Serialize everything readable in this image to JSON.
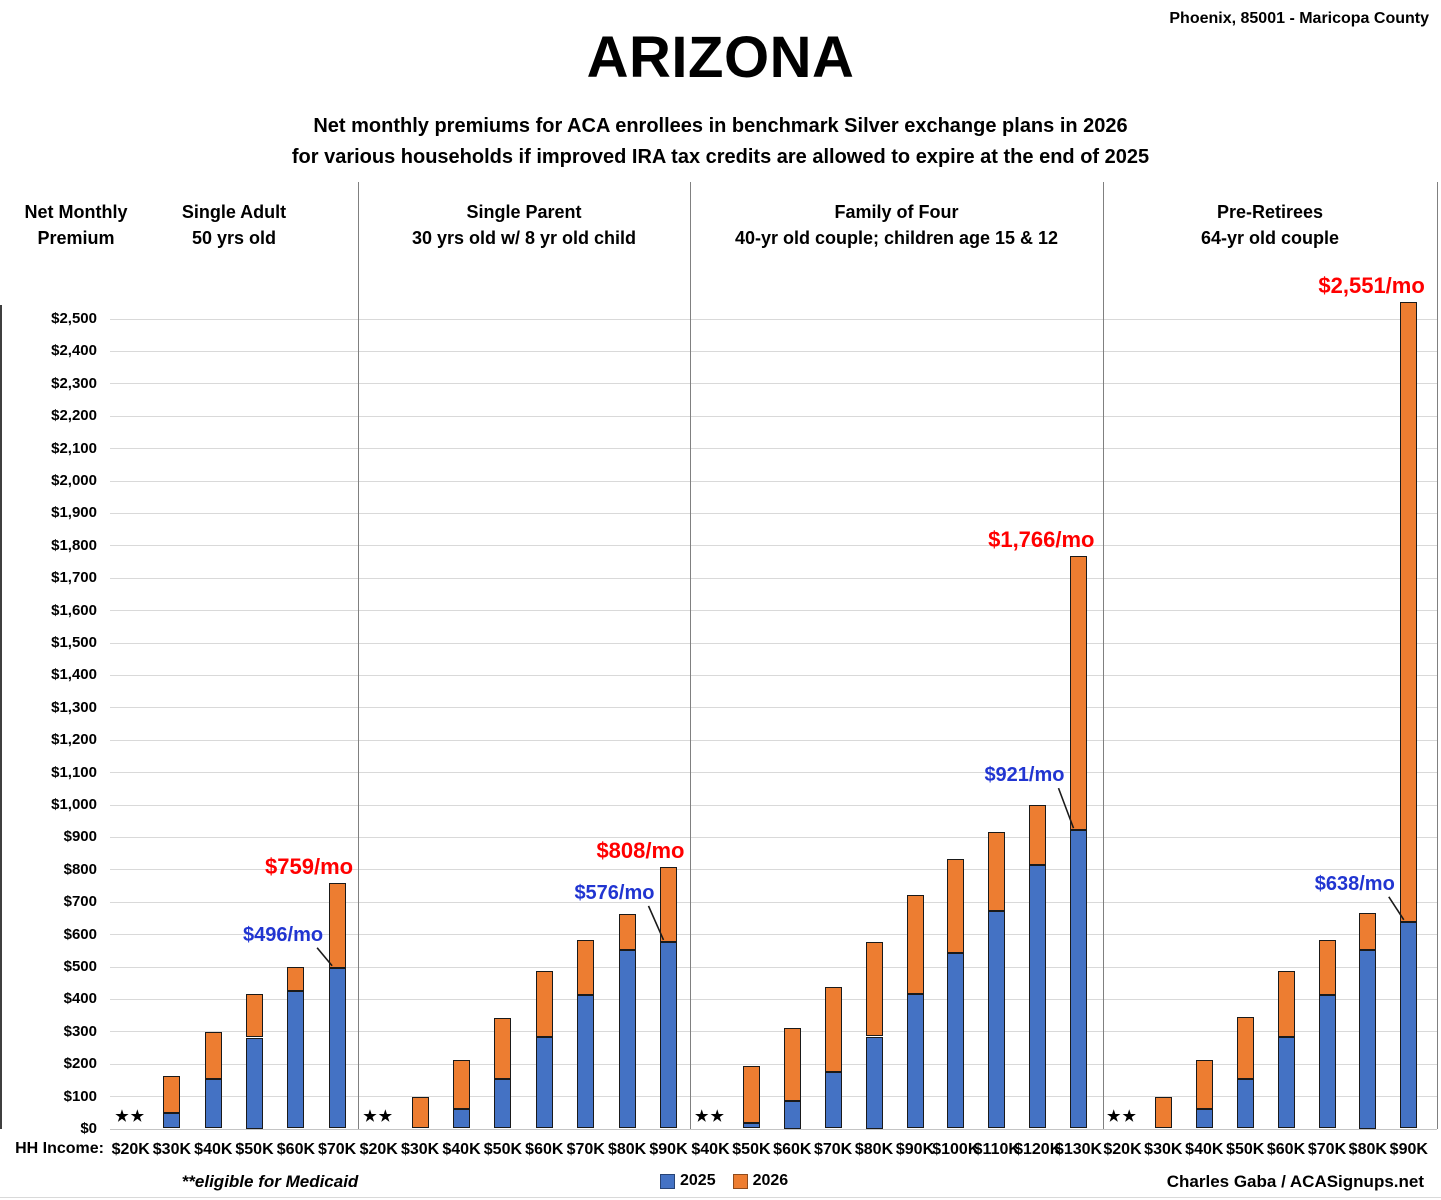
{
  "header": {
    "location": "Phoenix, 85001 - Maricopa County",
    "title": "ARIZONA",
    "subtitle_line1": "Net monthly premiums for ACA enrollees in benchmark Silver exchange plans in 2026",
    "subtitle_line2": "for various households if improved IRA tax credits are allowed to expire at the end of 2025"
  },
  "axis": {
    "y_title_line1": "Net Monthly",
    "y_title_line2": "Premium",
    "x_title": "HH Income:",
    "y_min": 0,
    "y_max": 2500,
    "y_step": 100,
    "tick_prefix": "$",
    "medicaid_marker": "★★"
  },
  "legend": {
    "items": [
      {
        "label": "2025",
        "color": "#4472C4"
      },
      {
        "label": "2026",
        "color": "#ED7D31"
      }
    ]
  },
  "footer": {
    "footnote": "**eligible for Medicaid",
    "credit": "Charles Gaba / ACASignups.net"
  },
  "colors": {
    "blue_2025": "#4472C4",
    "orange_2026": "#ED7D31",
    "bar_border": "#1a1a1a",
    "annotation_red": "#FF0000",
    "annotation_blue": "#2135D1",
    "gridline": "#d9d9d9",
    "axis_line": "#c4c4c4",
    "divider": "#808080"
  },
  "chart_data": {
    "type": "bar",
    "stacked": true,
    "title": "ARIZONA",
    "ylabel": "Net Monthly Premium",
    "ylim": [
      0,
      2600
    ],
    "ytick_step": 100,
    "grid": true,
    "legend_position": "bottom",
    "series_names": [
      "2025",
      "2026"
    ],
    "note": "Blue bar = 2025 net monthly premium; orange segment extends to the 2026 net monthly premium. Starred incomes are eligible for Medicaid (no premium shown).",
    "groups": [
      {
        "title": "Single Adult",
        "subtitle": "50 yrs old",
        "bars": [
          {
            "income": "$20K",
            "medicaid": true
          },
          {
            "income": "$30K",
            "premium_2025": 48,
            "premium_2026": 162
          },
          {
            "income": "$40K",
            "premium_2025": 152,
            "premium_2026": 297
          },
          {
            "income": "$50K",
            "premium_2025": 281,
            "premium_2026": 416
          },
          {
            "income": "$60K",
            "premium_2025": 424,
            "premium_2026": 498
          },
          {
            "income": "$70K",
            "premium_2025": 496,
            "premium_2026": 759
          }
        ],
        "annotations": {
          "label_2026": "$759/mo",
          "label_2025": "$496/mo"
        }
      },
      {
        "title": "Single Parent",
        "subtitle": "30 yrs old w/ 8 yr old child",
        "bars": [
          {
            "income": "$20K",
            "medicaid": true
          },
          {
            "income": "$30K",
            "premium_2025": 0,
            "premium_2026": 97
          },
          {
            "income": "$40K",
            "premium_2025": 60,
            "premium_2026": 212
          },
          {
            "income": "$50K",
            "premium_2025": 154,
            "premium_2026": 342
          },
          {
            "income": "$60K",
            "premium_2025": 283,
            "premium_2026": 487
          },
          {
            "income": "$70K",
            "premium_2025": 411,
            "premium_2026": 581
          },
          {
            "income": "$80K",
            "premium_2025": 552,
            "premium_2026": 663
          },
          {
            "income": "$90K",
            "premium_2025": 576,
            "premium_2026": 808
          }
        ],
        "annotations": {
          "label_2026": "$808/mo",
          "label_2025": "$576/mo"
        }
      },
      {
        "title": "Family of Four",
        "subtitle": "40-yr old couple; children age 15 & 12",
        "bars": [
          {
            "income": "$40K",
            "medicaid": true
          },
          {
            "income": "$50K",
            "premium_2025": 16,
            "premium_2026": 192
          },
          {
            "income": "$60K",
            "premium_2025": 85,
            "premium_2026": 310
          },
          {
            "income": "$70K",
            "premium_2025": 173,
            "premium_2026": 437
          },
          {
            "income": "$80K",
            "premium_2025": 284,
            "premium_2026": 575
          },
          {
            "income": "$90K",
            "premium_2025": 414,
            "premium_2026": 720
          },
          {
            "income": "$100K",
            "premium_2025": 543,
            "premium_2026": 831
          },
          {
            "income": "$110K",
            "premium_2025": 671,
            "premium_2026": 916
          },
          {
            "income": "$120K",
            "premium_2025": 813,
            "premium_2026": 1000
          },
          {
            "income": "$130K",
            "premium_2025": 921,
            "premium_2026": 1766
          }
        ],
        "annotations": {
          "label_2026": "$1,766/mo",
          "label_2025": "$921/mo"
        }
      },
      {
        "title": "Pre-Retirees",
        "subtitle": "64-yr old couple",
        "bars": [
          {
            "income": "$20K",
            "medicaid": true
          },
          {
            "income": "$30K",
            "premium_2025": 0,
            "premium_2026": 96
          },
          {
            "income": "$40K",
            "premium_2025": 60,
            "premium_2026": 212
          },
          {
            "income": "$50K",
            "premium_2025": 154,
            "premium_2026": 343
          },
          {
            "income": "$60K",
            "premium_2025": 282,
            "premium_2026": 487
          },
          {
            "income": "$70K",
            "premium_2025": 411,
            "premium_2026": 582
          },
          {
            "income": "$80K",
            "premium_2025": 551,
            "premium_2026": 665
          },
          {
            "income": "$90K",
            "premium_2025": 638,
            "premium_2026": 2551
          }
        ],
        "annotations": {
          "label_2026": "$2,551/mo",
          "label_2025": "$638/mo"
        }
      }
    ]
  }
}
